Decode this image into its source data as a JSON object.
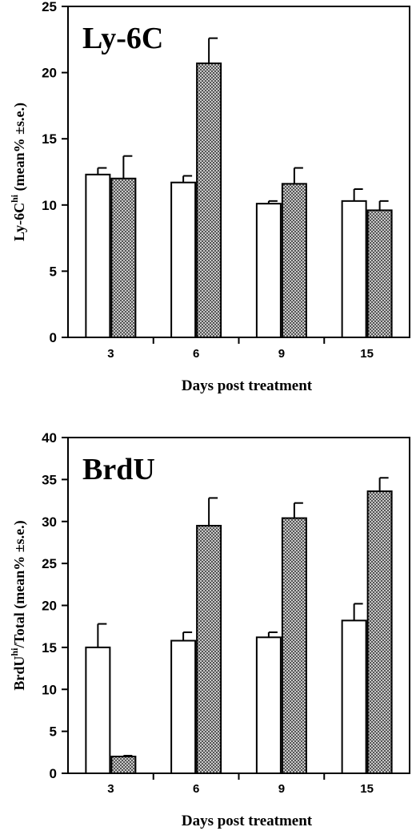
{
  "chart_data": [
    {
      "type": "bar",
      "title": "Ly-6C",
      "xlabel": "Days post treatment",
      "ylabel_main": "Ly-6C",
      "ylabel_sup": "hi",
      "ylabel_rest": " (mean% ±s.e.)",
      "categories": [
        "3",
        "6",
        "9",
        "15"
      ],
      "ylim": [
        0,
        25
      ],
      "yticks": [
        0,
        5,
        10,
        15,
        20,
        25
      ],
      "series": [
        {
          "fill": "white",
          "values": [
            12.3,
            11.7,
            10.1,
            10.3
          ],
          "errors": [
            0.5,
            0.5,
            0.2,
            0.9
          ]
        },
        {
          "fill": "crosshatch",
          "values": [
            12.0,
            20.7,
            11.6,
            9.6
          ],
          "errors": [
            1.7,
            1.9,
            1.2,
            0.7
          ]
        }
      ]
    },
    {
      "type": "bar",
      "title": "BrdU",
      "xlabel": "Days post treatment",
      "ylabel_main": "BrdU",
      "ylabel_sup": "hi",
      "ylabel_rest": "/Total (mean% ±s.e.)",
      "categories": [
        "3",
        "6",
        "9",
        "15"
      ],
      "ylim": [
        0,
        40
      ],
      "yticks": [
        0,
        5,
        10,
        15,
        20,
        25,
        30,
        35,
        40
      ],
      "series": [
        {
          "fill": "white",
          "values": [
            15.0,
            15.8,
            16.2,
            18.2
          ],
          "errors": [
            2.8,
            1.0,
            0.6,
            2.0
          ]
        },
        {
          "fill": "crosshatch",
          "values": [
            2.0,
            29.5,
            30.4,
            33.6
          ],
          "errors": [
            0.1,
            3.3,
            1.8,
            1.6
          ]
        }
      ]
    }
  ]
}
